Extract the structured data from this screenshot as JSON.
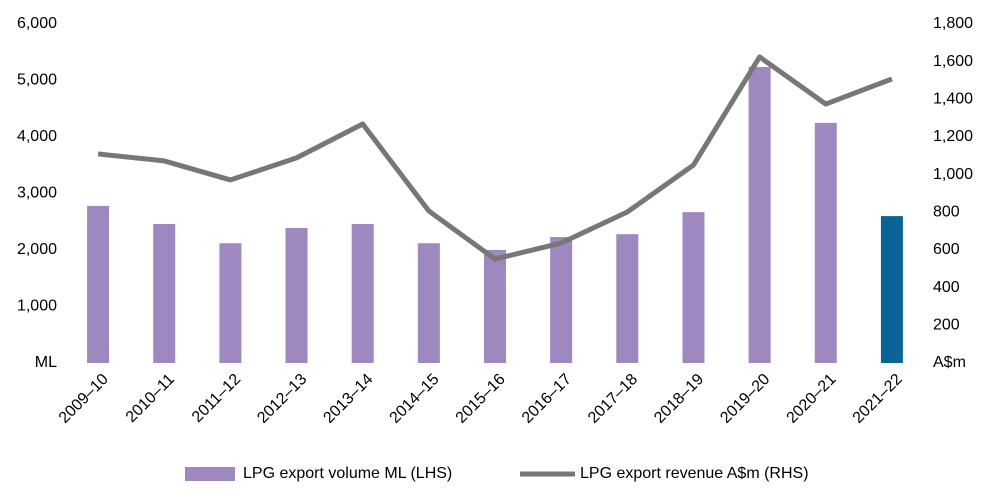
{
  "chart_data": {
    "type": "bar-line",
    "categories": [
      "2009–10",
      "2010–11",
      "2011–12",
      "2012–13",
      "2013–14",
      "2014–15",
      "2015–16",
      "2016–17",
      "2017–18",
      "2018–19",
      "2019–20",
      "2020–21",
      "2021–22"
    ],
    "series": [
      {
        "name": "LPG export volume ML (LHS)",
        "type": "bar",
        "color": "#9e88c0",
        "colors": [
          "#9e88c0",
          "#9e88c0",
          "#9e88c0",
          "#9e88c0",
          "#9e88c0",
          "#9e88c0",
          "#9e88c0",
          "#9e88c0",
          "#9e88c0",
          "#9e88c0",
          "#9e88c0",
          "#9e88c0",
          "#0a6496"
        ],
        "values": [
          2780,
          2460,
          2120,
          2390,
          2460,
          2120,
          2000,
          2230,
          2280,
          2670,
          5240,
          4250,
          2600
        ]
      },
      {
        "name": "LPG export revenue A$m (RHS)",
        "type": "line",
        "axis": "y2",
        "color": "#777777",
        "values": [
          1110,
          1073,
          972,
          1089,
          1269,
          807,
          552,
          637,
          802,
          1051,
          1625,
          1375,
          1508
        ]
      }
    ],
    "ylim": [
      0,
      6000
    ],
    "yticks": [
      {
        "value": 0,
        "label": "ML"
      },
      {
        "value": 1000,
        "label": "1,000"
      },
      {
        "value": 2000,
        "label": "2,000"
      },
      {
        "value": 3000,
        "label": "3,000"
      },
      {
        "value": 4000,
        "label": "4,000"
      },
      {
        "value": 5000,
        "label": "5,000"
      },
      {
        "value": 6000,
        "label": "6,000"
      }
    ],
    "y2lim": [
      0,
      1800
    ],
    "y2ticks": [
      {
        "value": 0,
        "label": "A$m"
      },
      200,
      400,
      600,
      800,
      {
        "value": 1000,
        "label": "1,000"
      },
      {
        "value": 1200,
        "label": "1,200"
      },
      {
        "value": 1400,
        "label": "1,400"
      },
      {
        "value": 1600,
        "label": "1,600"
      },
      {
        "value": 1800,
        "label": "1,800"
      }
    ],
    "grid": false
  }
}
